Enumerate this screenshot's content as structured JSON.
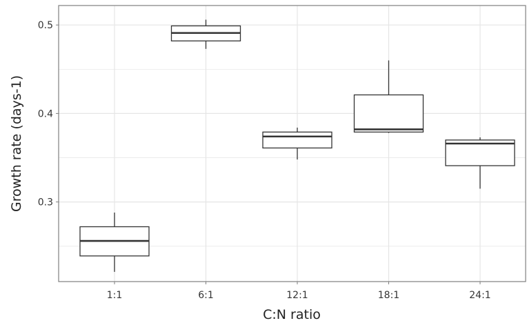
{
  "chart_data": {
    "type": "box",
    "title": "",
    "xlabel": "C:N ratio",
    "ylabel": "Growth rate (days-1)",
    "ylim": [
      0.21,
      0.522
    ],
    "yticks": [
      0.3,
      0.4,
      0.5
    ],
    "ytick_labels": [
      "0.3",
      "0.4",
      "0.5"
    ],
    "grid": true,
    "categories": [
      "1:1",
      "6:1",
      "12:1",
      "18:1",
      "24:1"
    ],
    "boxes": [
      {
        "category": "1:1",
        "whisker_low": 0.221,
        "q1": 0.239,
        "median": 0.256,
        "q3": 0.272,
        "whisker_high": 0.288
      },
      {
        "category": "6:1",
        "whisker_low": 0.473,
        "q1": 0.482,
        "median": 0.491,
        "q3": 0.499,
        "whisker_high": 0.506
      },
      {
        "category": "12:1",
        "whisker_low": 0.348,
        "q1": 0.361,
        "median": 0.374,
        "q3": 0.379,
        "whisker_high": 0.384
      },
      {
        "category": "18:1",
        "whisker_low": 0.378,
        "q1": 0.379,
        "median": 0.382,
        "q3": 0.421,
        "whisker_high": 0.46
      },
      {
        "category": "24:1",
        "whisker_low": 0.315,
        "q1": 0.341,
        "median": 0.366,
        "q3": 0.37,
        "whisker_high": 0.373
      }
    ],
    "colors": {
      "box_stroke": "#333333",
      "box_fill": "#ffffff",
      "grid": "#e5e5e5",
      "panel_border": "#7f7f7f",
      "text": "#333333"
    }
  }
}
